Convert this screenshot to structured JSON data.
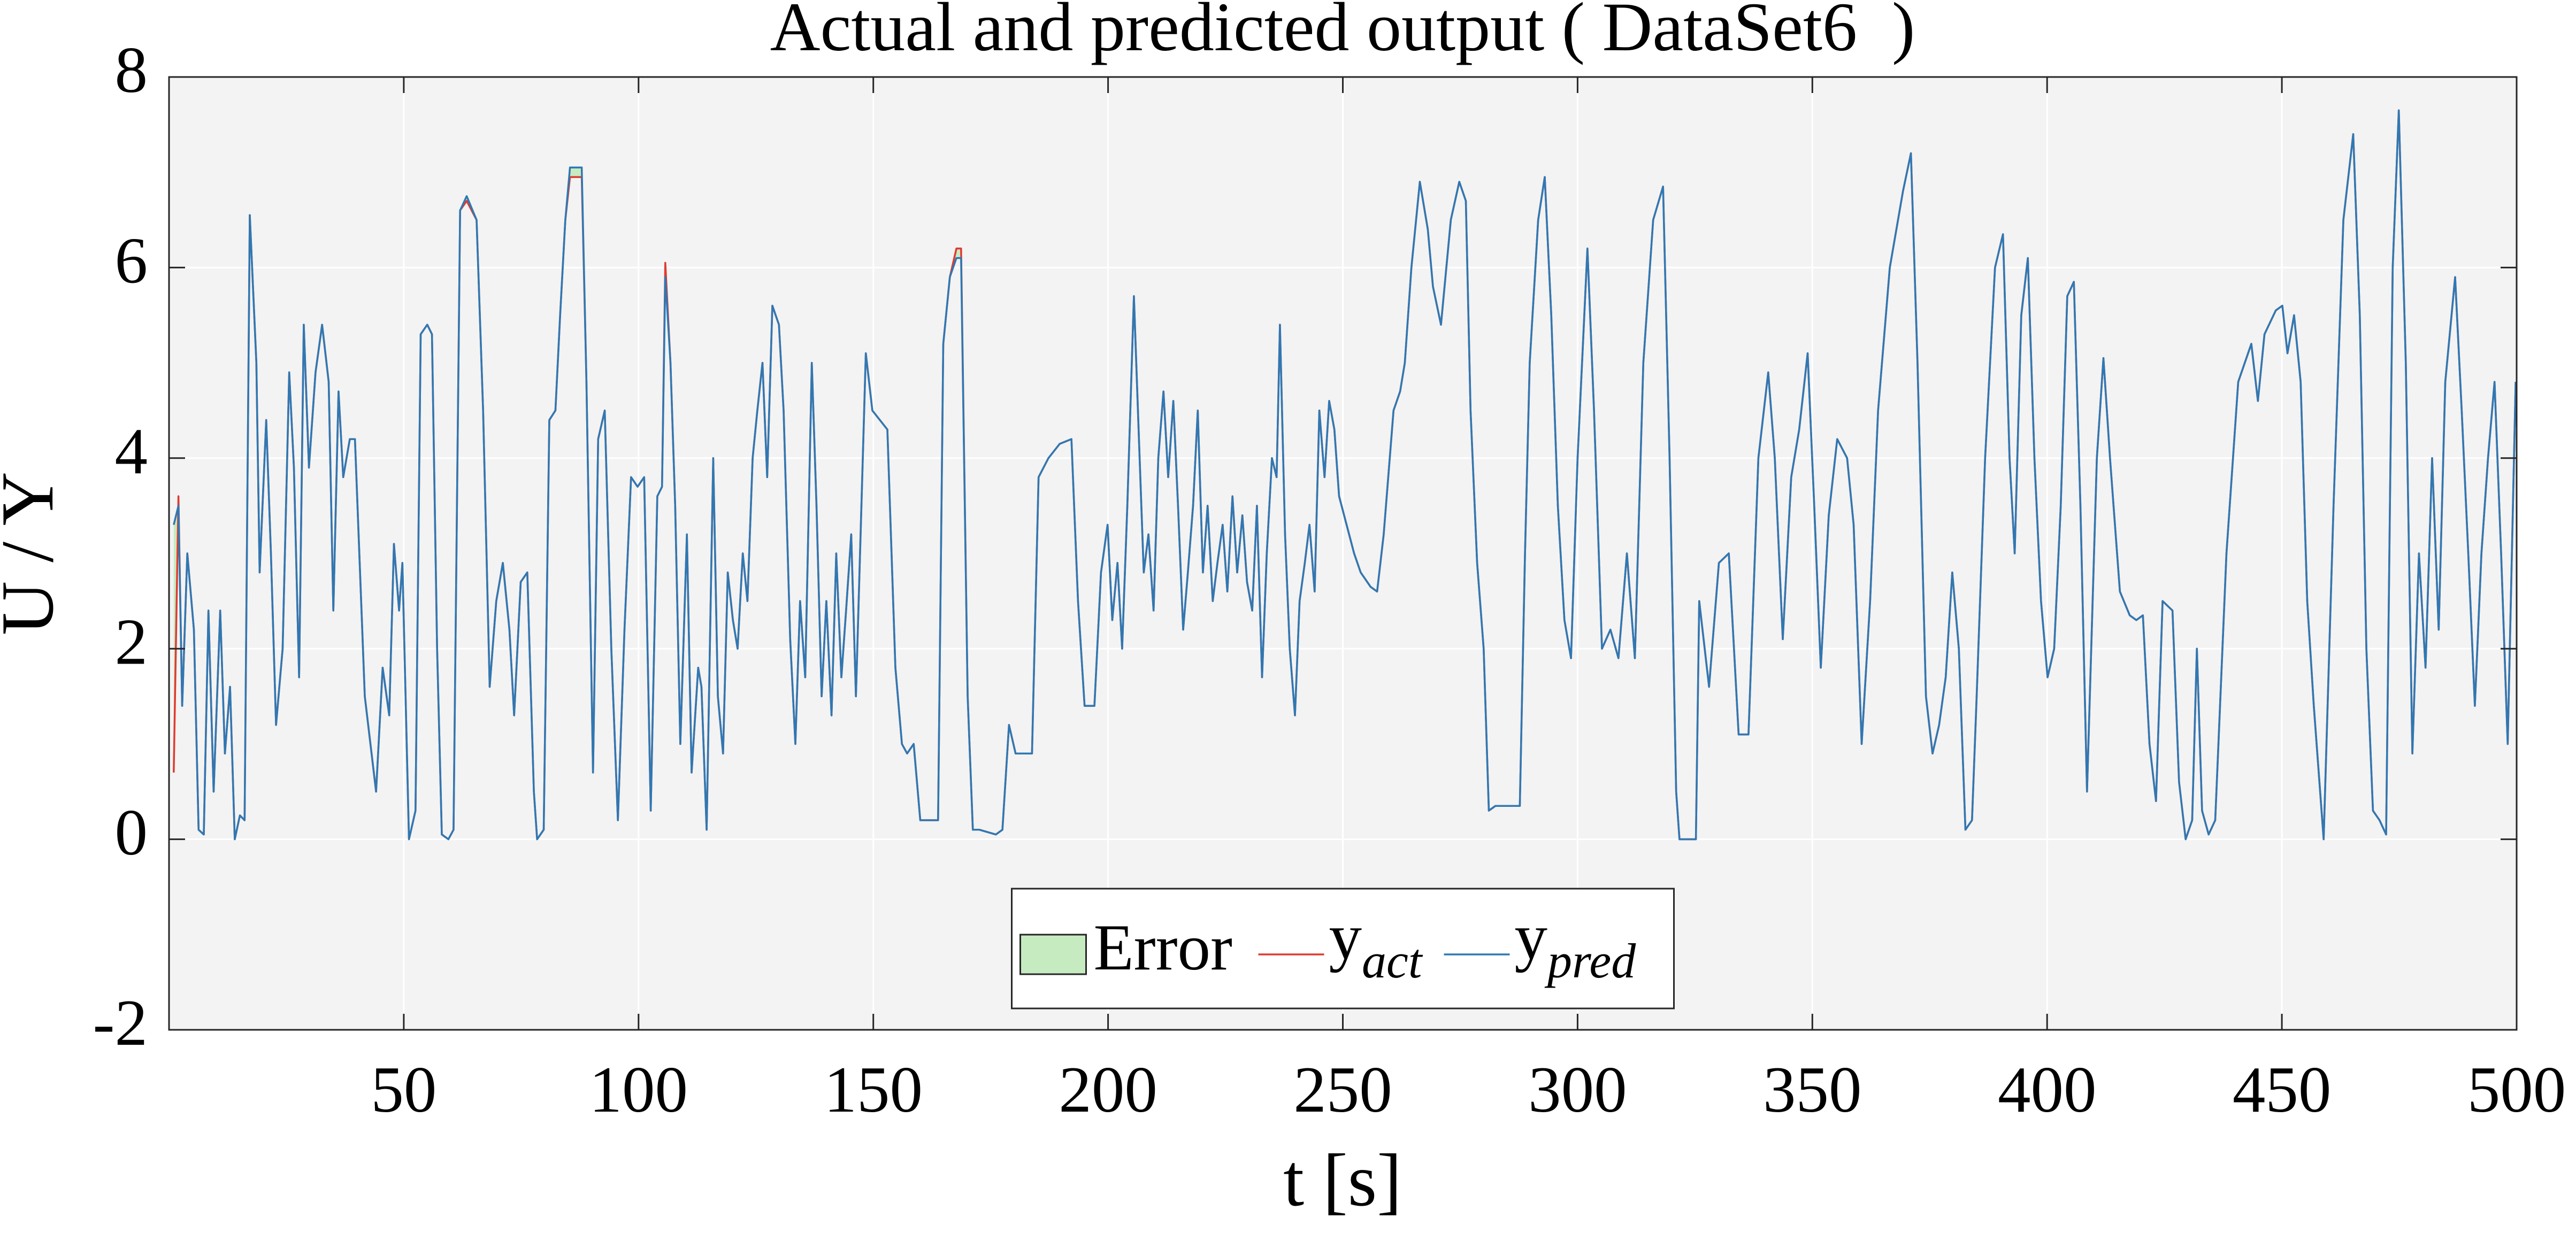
{
  "chart_data": {
    "type": "line",
    "title": "Actual and predicted output ( DataSet6  )",
    "xlabel": "t [s]",
    "ylabel": "U / Y",
    "x": [
      1,
      2,
      2.8,
      3.9,
      5.3,
      6.3,
      7.4,
      8.4,
      9.5,
      10.9,
      11.9,
      13.0,
      14.0,
      15.1,
      16.1,
      17.2,
      18.6,
      19.3,
      20.7,
      21.7,
      22.8,
      24.2,
      25.6,
      26.6,
      27.7,
      28.7,
      29.8,
      31.2,
      32.6,
      34.0,
      35.0,
      36.1,
      37.1,
      38.5,
      39.6,
      41.7,
      44.1,
      45.5,
      46.9,
      47.9,
      49.0,
      49.7,
      51.1,
      52.5,
      53.6,
      55.0,
      56.0,
      57.1,
      58.1,
      59.5,
      60.6,
      62.0,
      63.4,
      65.5,
      66.9,
      68.3,
      69.7,
      71.1,
      72.5,
      73.5,
      74.9,
      76.3,
      77.7,
      78.4,
      79.8,
      81.0,
      82.3,
      83.3,
      84.4,
      85.4,
      87.9,
      88.9,
      90.3,
      91.4,
      92.8,
      94.2,
      95.6,
      97.0,
      98.4,
      99.8,
      101.2,
      102.6,
      104.0,
      105.0,
      105.7,
      106.8,
      107.8,
      108.9,
      110.3,
      111.3,
      112.7,
      113.4,
      114.5,
      115.9,
      116.9,
      118.0,
      119.0,
      120.1,
      121.1,
      122.2,
      123.2,
      124.3,
      125.3,
      126.4,
      127.4,
      128.5,
      129.9,
      130.9,
      132.3,
      133.4,
      134.4,
      135.5,
      136.9,
      137.9,
      139.0,
      140.0,
      141.1,
      142.1,
      143.2,
      144.2,
      145.3,
      146.3,
      148.4,
      149.8,
      153.0,
      154.7,
      156.1,
      157.2,
      158.6,
      160.0,
      162.1,
      163.8,
      164.9,
      166.3,
      167.7,
      168.7,
      170.1,
      171.2,
      172.6,
      176.1,
      177.5,
      178.9,
      180.3,
      182.7,
      183.8,
      185.2,
      187.3,
      189.7,
      192.2,
      193.6,
      195.0,
      197.1,
      198.5,
      199.9,
      200.9,
      202.0,
      203.0,
      204.1,
      205.5,
      206.5,
      207.6,
      208.6,
      209.7,
      210.7,
      211.8,
      212.8,
      213.9,
      214.9,
      216.0,
      217.0,
      218.1,
      219.1,
      220.2,
      221.2,
      222.3,
      223.3,
      224.4,
      225.4,
      226.5,
      227.5,
      228.6,
      229.6,
      230.7,
      231.7,
      232.8,
      233.8,
      234.9,
      235.9,
      236.6,
      237.7,
      238.7,
      239.8,
      240.8,
      241.9,
      242.9,
      244.0,
      245.0,
      246.1,
      247.1,
      248.2,
      249.2,
      252.4,
      253.8,
      255.9,
      257.3,
      258.7,
      260.8,
      262.2,
      263.2,
      264.6,
      266.4,
      268.1,
      269.2,
      270.9,
      273.0,
      274.8,
      276.2,
      277.2,
      278.6,
      280.0,
      281.1,
      282.5,
      286.0,
      287.7,
      288.8,
      289.8,
      291.6,
      293.0,
      294.4,
      295.8,
      297.2,
      298.6,
      300.0,
      302.1,
      303.5,
      305.2,
      307.0,
      308.7,
      310.5,
      312.2,
      314.0,
      316.1,
      318.2,
      319.6,
      321.0,
      321.7,
      325.2,
      325.9,
      328.0,
      330.1,
      332.2,
      334.3,
      336.4,
      338.5,
      340.6,
      342.0,
      343.7,
      345.5,
      347.2,
      349.0,
      350.4,
      351.8,
      353.5,
      355.3,
      357.4,
      358.8,
      360.5,
      362.3,
      364.0,
      366.5,
      369.3,
      371.0,
      372.4,
      374.2,
      375.6,
      377.0,
      378.4,
      379.8,
      381.2,
      382.6,
      384.0,
      385.0,
      386.8,
      388.9,
      390.6,
      392.0,
      393.1,
      394.5,
      395.9,
      397.3,
      398.7,
      400.1,
      401.5,
      402.9,
      404.3,
      405.7,
      407.1,
      408.5,
      410.6,
      412.0,
      413.4,
      415.5,
      417.6,
      419.0,
      420.4,
      421.8,
      423.2,
      424.6,
      426.7,
      428.1,
      429.5,
      430.9,
      431.9,
      433.0,
      434.4,
      435.8,
      438.2,
      440.7,
      443.5,
      444.9,
      446.3,
      448.7,
      450.1,
      451.2,
      452.6,
      454.0,
      455.4,
      456.8,
      458.9,
      461.0,
      463.1,
      465.2,
      466.6,
      468.0,
      469.4,
      470.8,
      472.2,
      473.6,
      474.9,
      476.4,
      477.8,
      479.2,
      480.6,
      482.0,
      483.4,
      484.8,
      486.9,
      488.3,
      489.7,
      491.1,
      492.5,
      493.9,
      495.3,
      496.7,
      498.1,
      499.8
    ],
    "series": [
      {
        "name": "yact",
        "color": "#e03a2f",
        "values": [
          0.7,
          3.6,
          1.4,
          3.0,
          2.2,
          0.1,
          0.05,
          2.4,
          0.5,
          2.4,
          0.9,
          1.6,
          0.0,
          0.25,
          0.2,
          6.55,
          5.0,
          2.8,
          4.4,
          3.0,
          1.2,
          2.0,
          4.9,
          3.9,
          1.7,
          5.4,
          3.9,
          4.9,
          5.4,
          4.8,
          2.4,
          4.7,
          3.8,
          4.2,
          4.2,
          1.5,
          0.5,
          1.8,
          1.3,
          3.1,
          2.4,
          2.9,
          0.0,
          0.3,
          5.3,
          5.4,
          5.3,
          2.0,
          0.05,
          0.0,
          0.1,
          6.6,
          6.7,
          6.5,
          4.5,
          1.6,
          2.5,
          2.9,
          2.2,
          1.3,
          2.7,
          2.8,
          0.5,
          0.0,
          0.1,
          4.4,
          4.5,
          5.5,
          6.5,
          6.95,
          6.95,
          4.8,
          0.7,
          4.2,
          4.5,
          2.0,
          0.2,
          2.2,
          3.8,
          3.7,
          3.8,
          0.3,
          3.6,
          3.7,
          6.05,
          5.0,
          3.5,
          1.0,
          3.2,
          0.7,
          1.8,
          1.6,
          0.1,
          4.0,
          1.5,
          0.9,
          2.8,
          2.3,
          2.0,
          3.0,
          2.5,
          4.0,
          4.5,
          5.0,
          3.8,
          5.6,
          5.4,
          4.5,
          2.1,
          1.0,
          2.5,
          1.7,
          5.0,
          3.5,
          1.5,
          2.5,
          1.3,
          3.0,
          1.7,
          2.4,
          3.2,
          1.5,
          5.1,
          4.5,
          4.3,
          1.8,
          1.0,
          0.9,
          1.0,
          0.2,
          0.2,
          0.2,
          5.2,
          5.9,
          6.2,
          6.2,
          1.5,
          0.1,
          0.1,
          0.05,
          0.1,
          1.2,
          0.9,
          0.9,
          0.9,
          3.8,
          4.0,
          4.15,
          4.2,
          2.5,
          1.4,
          1.4,
          2.8,
          3.3,
          2.3,
          2.9,
          2.0,
          3.5,
          5.7,
          4.3,
          2.8,
          3.2,
          2.4,
          4.0,
          4.7,
          3.8,
          4.6,
          3.5,
          2.2,
          2.8,
          3.5,
          4.5,
          2.8,
          3.5,
          2.5,
          2.9,
          3.3,
          2.6,
          3.6,
          2.8,
          3.4,
          2.7,
          2.4,
          3.5,
          1.7,
          3.0,
          4.0,
          3.8,
          5.4,
          3.2,
          2.0,
          1.3,
          2.5,
          2.9,
          3.3,
          2.6,
          4.5,
          3.8,
          4.6,
          4.3,
          3.6,
          3.0,
          2.8,
          2.65,
          2.6,
          3.2,
          4.5,
          4.7,
          5.0,
          6.0,
          6.9,
          6.4,
          5.8,
          5.4,
          6.5,
          6.9,
          6.7,
          4.5,
          2.9,
          2.0,
          0.3,
          0.35,
          0.35,
          0.35,
          3.0,
          5.0,
          6.5,
          6.95,
          5.5,
          3.5,
          2.3,
          1.9,
          4.0,
          6.2,
          4.5,
          2.0,
          2.2,
          1.9,
          3.0,
          1.9,
          5.0,
          6.5,
          6.85,
          4.0,
          0.5,
          0.0,
          0.0,
          2.5,
          1.6,
          2.9,
          3.0,
          1.1,
          1.1,
          4.0,
          4.9,
          4.0,
          2.1,
          3.8,
          4.3,
          5.1,
          3.5,
          1.8,
          3.4,
          4.2,
          4.0,
          3.3,
          1.0,
          2.5,
          4.5,
          6.0,
          6.8,
          7.2,
          5.0,
          1.5,
          0.9,
          1.2,
          1.7,
          2.8,
          2.0,
          0.1,
          0.2,
          1.5,
          4.0,
          6.0,
          6.35,
          4.0,
          3.0,
          5.5,
          6.1,
          4.0,
          2.5,
          1.7,
          2.0,
          3.5,
          5.7,
          5.85,
          3.5,
          0.5,
          4.0,
          5.05,
          4.0,
          2.6,
          2.35,
          2.3,
          2.35,
          1.0,
          0.4,
          2.5,
          2.4,
          0.6,
          0.0,
          0.2,
          2.0,
          0.3,
          0.05,
          0.2,
          3.0,
          4.8,
          5.2,
          4.6,
          5.3,
          5.55,
          5.6,
          5.1,
          5.5,
          4.8,
          2.5,
          1.4,
          0.0,
          3.5,
          6.5,
          7.4,
          5.5,
          2.0,
          0.3,
          0.2,
          0.05,
          6.0,
          7.65,
          5.0,
          0.9,
          3.0,
          1.8,
          4.0,
          2.2,
          4.8,
          5.9,
          4.5,
          3.0,
          1.4,
          3.0,
          4.0,
          4.8,
          3.0,
          1.0,
          4.8
        ]
      },
      {
        "name": "ypred",
        "color": "#2f78b3",
        "values": [
          3.3,
          3.5,
          1.4,
          3.0,
          2.2,
          0.1,
          0.05,
          2.4,
          0.5,
          2.4,
          0.9,
          1.6,
          0.0,
          0.25,
          0.2,
          6.55,
          5.0,
          2.8,
          4.4,
          3.0,
          1.2,
          2.0,
          4.9,
          3.9,
          1.7,
          5.4,
          3.9,
          4.9,
          5.4,
          4.8,
          2.4,
          4.7,
          3.8,
          4.2,
          4.2,
          1.5,
          0.5,
          1.8,
          1.3,
          3.1,
          2.4,
          2.9,
          0.0,
          0.3,
          5.3,
          5.4,
          5.3,
          2.0,
          0.05,
          0.0,
          0.1,
          6.6,
          6.75,
          6.5,
          4.5,
          1.6,
          2.5,
          2.9,
          2.2,
          1.3,
          2.7,
          2.8,
          0.5,
          0.0,
          0.1,
          4.4,
          4.5,
          5.5,
          6.5,
          7.05,
          7.05,
          4.8,
          0.7,
          4.2,
          4.5,
          2.0,
          0.2,
          2.2,
          3.8,
          3.7,
          3.8,
          0.3,
          3.6,
          3.7,
          5.9,
          5.0,
          3.5,
          1.0,
          3.2,
          0.7,
          1.8,
          1.6,
          0.1,
          4.0,
          1.5,
          0.9,
          2.8,
          2.3,
          2.0,
          3.0,
          2.5,
          4.0,
          4.5,
          5.0,
          3.8,
          5.6,
          5.4,
          4.5,
          2.1,
          1.0,
          2.5,
          1.7,
          5.0,
          3.5,
          1.5,
          2.5,
          1.3,
          3.0,
          1.7,
          2.4,
          3.2,
          1.5,
          5.1,
          4.5,
          4.3,
          1.8,
          1.0,
          0.9,
          1.0,
          0.2,
          0.2,
          0.2,
          5.2,
          5.9,
          6.1,
          6.1,
          1.5,
          0.1,
          0.1,
          0.05,
          0.1,
          1.2,
          0.9,
          0.9,
          0.9,
          3.8,
          4.0,
          4.15,
          4.2,
          2.5,
          1.4,
          1.4,
          2.8,
          3.3,
          2.3,
          2.9,
          2.0,
          3.5,
          5.7,
          4.3,
          2.8,
          3.2,
          2.4,
          4.0,
          4.7,
          3.8,
          4.6,
          3.5,
          2.2,
          2.8,
          3.5,
          4.5,
          2.8,
          3.5,
          2.5,
          2.9,
          3.3,
          2.6,
          3.6,
          2.8,
          3.4,
          2.7,
          2.4,
          3.5,
          1.7,
          3.0,
          4.0,
          3.8,
          5.4,
          3.2,
          2.0,
          1.3,
          2.5,
          2.9,
          3.3,
          2.6,
          4.5,
          3.8,
          4.6,
          4.3,
          3.6,
          3.0,
          2.8,
          2.65,
          2.6,
          3.2,
          4.5,
          4.7,
          5.0,
          6.0,
          6.9,
          6.4,
          5.8,
          5.4,
          6.5,
          6.9,
          6.7,
          4.5,
          2.9,
          2.0,
          0.3,
          0.35,
          0.35,
          0.35,
          3.0,
          5.0,
          6.5,
          6.95,
          5.5,
          3.5,
          2.3,
          1.9,
          4.0,
          6.2,
          4.5,
          2.0,
          2.2,
          1.9,
          3.0,
          1.9,
          5.0,
          6.5,
          6.85,
          4.0,
          0.5,
          0.0,
          0.0,
          2.5,
          1.6,
          2.9,
          3.0,
          1.1,
          1.1,
          4.0,
          4.9,
          4.0,
          2.1,
          3.8,
          4.3,
          5.1,
          3.5,
          1.8,
          3.4,
          4.2,
          4.0,
          3.3,
          1.0,
          2.5,
          4.5,
          6.0,
          6.8,
          7.2,
          5.0,
          1.5,
          0.9,
          1.2,
          1.7,
          2.8,
          2.0,
          0.1,
          0.2,
          1.5,
          4.0,
          6.0,
          6.35,
          4.0,
          3.0,
          5.5,
          6.1,
          4.0,
          2.5,
          1.7,
          2.0,
          3.5,
          5.7,
          5.85,
          3.5,
          0.5,
          4.0,
          5.05,
          4.0,
          2.6,
          2.35,
          2.3,
          2.35,
          1.0,
          0.4,
          2.5,
          2.4,
          0.6,
          0.0,
          0.2,
          2.0,
          0.3,
          0.05,
          0.2,
          3.0,
          4.8,
          5.2,
          4.6,
          5.3,
          5.55,
          5.6,
          5.1,
          5.5,
          4.8,
          2.5,
          1.4,
          0.0,
          3.5,
          6.5,
          7.4,
          5.5,
          2.0,
          0.3,
          0.2,
          0.05,
          6.0,
          7.65,
          5.0,
          0.9,
          3.0,
          1.8,
          4.0,
          2.2,
          4.8,
          5.9,
          4.5,
          3.0,
          1.4,
          3.0,
          4.0,
          4.8,
          3.0,
          1.0,
          4.8
        ]
      }
    ],
    "error": {
      "name": "Error",
      "color": "#c6ebc0"
    },
    "xlim": [
      0,
      500
    ],
    "ylim": [
      -2,
      8
    ],
    "xticks": [
      50,
      100,
      150,
      200,
      250,
      300,
      350,
      400,
      450,
      500
    ],
    "yticks": [
      -2,
      0,
      2,
      4,
      6,
      8
    ],
    "grid": true,
    "legend": "south"
  }
}
